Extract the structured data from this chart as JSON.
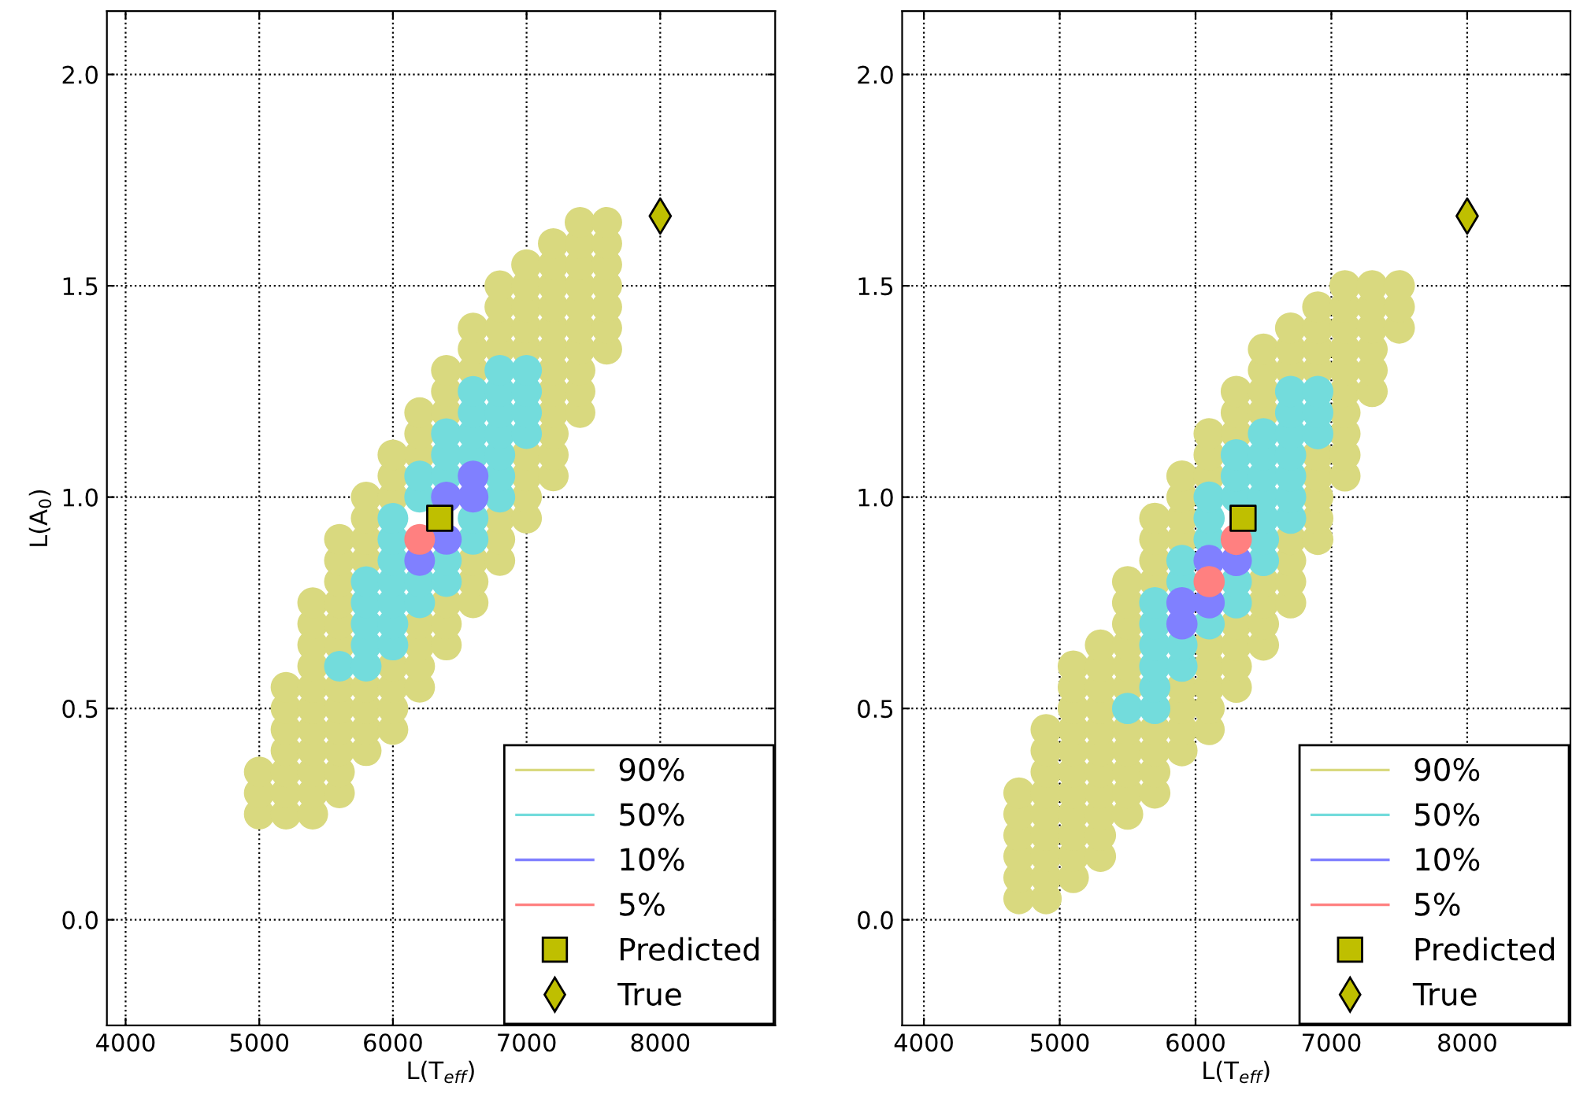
{
  "chart_data": [
    {
      "type": "scatter",
      "xlabel": "L(T$_{eff}$)",
      "ylabel": "L(A$_{0}$)",
      "xlim": [
        3860,
        8860
      ],
      "ylim": [
        -0.25,
        2.15
      ],
      "xticks": [
        4000,
        5000,
        6000,
        7000,
        8000
      ],
      "yticks": [
        {
          "value": 0,
          "label": "0.0"
        },
        {
          "value": 0.5,
          "label": "0.5"
        },
        {
          "value": 1,
          "label": "1.0"
        },
        {
          "value": 1.5,
          "label": "1.5"
        },
        {
          "value": 2,
          "label": "2.0"
        }
      ],
      "grid": true,
      "legend": "bottom right",
      "series": [
        {
          "name": "90%",
          "color": "#d9d97f",
          "marker": "circle",
          "x": [
            5000,
            5000,
            5000,
            5200,
            5200,
            5200,
            5200,
            5200,
            5200,
            5200,
            5400,
            5400,
            5400,
            5400,
            5400,
            5400,
            5400,
            5400,
            5400,
            5400,
            5400,
            5600,
            5600,
            5600,
            5600,
            5600,
            5600,
            5600,
            5600,
            5600,
            5600,
            5600,
            5600,
            5800,
            5800,
            5800,
            5800,
            5800,
            5800,
            5800,
            5800,
            6000,
            6000,
            6000,
            6000,
            6000,
            6000,
            6000,
            6200,
            6200,
            6200,
            6200,
            6200,
            6200,
            6200,
            6400,
            6400,
            6400,
            6400,
            6400,
            6400,
            6600,
            6600,
            6600,
            6600,
            6600,
            6600,
            6800,
            6800,
            6800,
            6800,
            6800,
            6800,
            6800,
            7000,
            7000,
            7000,
            7000,
            7000,
            7000,
            7000,
            7000,
            7000,
            7200,
            7200,
            7200,
            7200,
            7200,
            7200,
            7200,
            7200,
            7200,
            7200,
            7200,
            7200,
            7400,
            7400,
            7400,
            7400,
            7400,
            7400,
            7400,
            7400,
            7400,
            7400,
            7600,
            7600,
            7600,
            7600,
            7600,
            7600,
            7600
          ],
          "values": [
            0.25,
            0.3,
            0.35,
            0.25,
            0.3,
            0.35,
            0.4,
            0.45,
            0.5,
            0.55,
            0.25,
            0.3,
            0.35,
            0.4,
            0.45,
            0.5,
            0.55,
            0.6,
            0.65,
            0.7,
            0.75,
            0.3,
            0.35,
            0.4,
            0.45,
            0.5,
            0.55,
            0.65,
            0.7,
            0.75,
            0.8,
            0.85,
            0.9,
            0.4,
            0.45,
            0.5,
            0.55,
            0.85,
            0.9,
            0.95,
            1.0,
            0.45,
            0.5,
            0.55,
            0.6,
            1.0,
            1.05,
            1.1,
            0.55,
            0.6,
            0.65,
            0.7,
            1.1,
            1.15,
            1.2,
            0.65,
            0.7,
            0.75,
            1.2,
            1.25,
            1.3,
            0.75,
            0.8,
            0.85,
            1.3,
            1.35,
            1.4,
            0.85,
            0.9,
            0.95,
            1.35,
            1.4,
            1.45,
            1.5,
            0.95,
            1.0,
            1.05,
            1.1,
            1.35,
            1.4,
            1.45,
            1.5,
            1.55,
            1.05,
            1.1,
            1.15,
            1.2,
            1.25,
            1.3,
            1.35,
            1.4,
            1.45,
            1.5,
            1.55,
            1.6,
            1.2,
            1.25,
            1.3,
            1.35,
            1.4,
            1.45,
            1.5,
            1.55,
            1.6,
            1.65,
            1.35,
            1.4,
            1.45,
            1.5,
            1.55,
            1.6,
            1.65
          ]
        },
        {
          "name": "50%",
          "color": "#73dcdc",
          "marker": "circle",
          "x": [
            5600,
            5800,
            5800,
            5800,
            5800,
            5800,
            6000,
            6000,
            6000,
            6000,
            6000,
            6000,
            6000,
            6200,
            6200,
            6200,
            6200,
            6400,
            6400,
            6400,
            6400,
            6400,
            6600,
            6600,
            6600,
            6600,
            6600,
            6600,
            6800,
            6800,
            6800,
            6800,
            6800,
            6800,
            6800,
            7000,
            7000,
            7000,
            7000
          ],
          "values": [
            0.6,
            0.6,
            0.65,
            0.7,
            0.75,
            0.8,
            0.65,
            0.7,
            0.75,
            0.8,
            0.85,
            0.9,
            0.95,
            0.75,
            0.8,
            1.0,
            1.05,
            0.8,
            0.85,
            1.05,
            1.1,
            1.15,
            0.9,
            0.95,
            1.1,
            1.15,
            1.2,
            1.25,
            1.0,
            1.05,
            1.1,
            1.15,
            1.2,
            1.25,
            1.3,
            1.15,
            1.2,
            1.25,
            1.3
          ]
        },
        {
          "name": "10%",
          "color": "#8080ff",
          "marker": "circle",
          "x": [
            6200,
            6400,
            6400,
            6600,
            6600
          ],
          "values": [
            0.85,
            0.9,
            1.0,
            1.0,
            1.05
          ]
        },
        {
          "name": "5%",
          "color": "#ff8080",
          "marker": "circle",
          "x": [
            6200
          ],
          "values": [
            0.9
          ]
        },
        {
          "name": "Predicted",
          "marker": "square",
          "color": "#bfbf00",
          "x": [
            6350
          ],
          "values": [
            0.95
          ]
        },
        {
          "name": "True",
          "marker": "diamond",
          "color": "#bfbf00",
          "x": [
            8000
          ],
          "values": [
            1.665
          ]
        }
      ]
    },
    {
      "type": "scatter",
      "xlabel": "L(T$_{eff}$)",
      "xlim": [
        3840,
        8760
      ],
      "ylim": [
        -0.25,
        2.15
      ],
      "xticks": [
        4000,
        5000,
        6000,
        7000,
        8000
      ],
      "yticks": [
        {
          "value": 0,
          "label": "0.0"
        },
        {
          "value": 0.5,
          "label": "0.5"
        },
        {
          "value": 1,
          "label": "1.0"
        },
        {
          "value": 1.5,
          "label": "1.5"
        },
        {
          "value": 2,
          "label": "2.0"
        }
      ],
      "grid": true,
      "legend": "bottom right",
      "series": [
        {
          "name": "90%",
          "color": "#d9d97f",
          "marker": "circle",
          "x": [
            4700,
            4700,
            4700,
            4700,
            4700,
            4700,
            4900,
            4900,
            4900,
            4900,
            4900,
            4900,
            4900,
            4900,
            4900,
            5100,
            5100,
            5100,
            5100,
            5100,
            5100,
            5100,
            5100,
            5100,
            5100,
            5100,
            5300,
            5300,
            5300,
            5300,
            5300,
            5300,
            5300,
            5300,
            5300,
            5300,
            5300,
            5500,
            5500,
            5500,
            5500,
            5500,
            5500,
            5500,
            5500,
            5500,
            5500,
            5500,
            5700,
            5700,
            5700,
            5700,
            5700,
            5700,
            5700,
            5700,
            5900,
            5900,
            5900,
            5900,
            5900,
            5900,
            5900,
            5900,
            6100,
            6100,
            6100,
            6100,
            6100,
            6100,
            6100,
            6100,
            6300,
            6300,
            6300,
            6300,
            6300,
            6300,
            6300,
            6500,
            6500,
            6500,
            6500,
            6500,
            6500,
            6500,
            6500,
            6700,
            6700,
            6700,
            6700,
            6700,
            6700,
            6700,
            6900,
            6900,
            6900,
            6900,
            6900,
            6900,
            6900,
            6900,
            6900,
            7100,
            7100,
            7100,
            7100,
            7100,
            7100,
            7100,
            7100,
            7100,
            7100,
            7300,
            7300,
            7300,
            7300,
            7300,
            7300,
            7500,
            7500,
            7500
          ],
          "values": [
            0.05,
            0.1,
            0.15,
            0.2,
            0.25,
            0.3,
            0.05,
            0.1,
            0.15,
            0.2,
            0.25,
            0.3,
            0.35,
            0.4,
            0.45,
            0.1,
            0.15,
            0.2,
            0.25,
            0.3,
            0.35,
            0.4,
            0.45,
            0.5,
            0.55,
            0.6,
            0.15,
            0.2,
            0.25,
            0.3,
            0.35,
            0.4,
            0.45,
            0.5,
            0.55,
            0.6,
            0.65,
            0.25,
            0.3,
            0.35,
            0.4,
            0.45,
            0.55,
            0.6,
            0.65,
            0.7,
            0.75,
            0.8,
            0.3,
            0.35,
            0.4,
            0.45,
            0.8,
            0.85,
            0.9,
            0.95,
            0.4,
            0.45,
            0.5,
            0.55,
            0.9,
            0.95,
            1.0,
            1.05,
            0.45,
            0.5,
            0.55,
            0.6,
            0.65,
            1.05,
            1.1,
            1.15,
            0.55,
            0.6,
            0.65,
            0.7,
            1.15,
            1.2,
            1.25,
            0.65,
            0.7,
            0.75,
            0.8,
            1.2,
            1.25,
            1.3,
            1.35,
            0.75,
            0.8,
            0.85,
            0.9,
            1.3,
            1.35,
            1.4,
            0.9,
            0.95,
            1.0,
            1.05,
            1.1,
            1.3,
            1.35,
            1.4,
            1.45,
            1.05,
            1.1,
            1.15,
            1.2,
            1.25,
            1.3,
            1.35,
            1.4,
            1.45,
            1.5,
            1.25,
            1.3,
            1.35,
            1.4,
            1.45,
            1.5,
            1.4,
            1.45,
            1.5
          ]
        },
        {
          "name": "50%",
          "color": "#73dcdc",
          "marker": "circle",
          "x": [
            5500,
            5700,
            5700,
            5700,
            5700,
            5700,
            5700,
            5900,
            5900,
            5900,
            5900,
            6100,
            6100,
            6100,
            6100,
            6300,
            6300,
            6300,
            6300,
            6300,
            6500,
            6500,
            6500,
            6500,
            6500,
            6500,
            6500,
            6700,
            6700,
            6700,
            6700,
            6700,
            6700,
            6700,
            6900,
            6900,
            6900
          ],
          "values": [
            0.5,
            0.5,
            0.55,
            0.6,
            0.65,
            0.7,
            0.75,
            0.6,
            0.65,
            0.8,
            0.85,
            0.7,
            0.9,
            0.95,
            1.0,
            0.75,
            0.8,
            1.0,
            1.05,
            1.1,
            0.85,
            0.9,
            0.95,
            1.0,
            1.05,
            1.1,
            1.15,
            0.95,
            1.0,
            1.05,
            1.1,
            1.15,
            1.2,
            1.25,
            1.15,
            1.2,
            1.25
          ]
        },
        {
          "name": "10%",
          "color": "#8080ff",
          "marker": "circle",
          "x": [
            5900,
            5900,
            6100,
            6100,
            6300
          ],
          "values": [
            0.7,
            0.75,
            0.75,
            0.85,
            0.85
          ]
        },
        {
          "name": "5%",
          "color": "#ff8080",
          "marker": "circle",
          "x": [
            6100,
            6300
          ],
          "values": [
            0.8,
            0.9
          ]
        },
        {
          "name": "Predicted",
          "marker": "square",
          "color": "#bfbf00",
          "x": [
            6350
          ],
          "values": [
            0.95
          ]
        },
        {
          "name": "True",
          "marker": "diamond",
          "color": "#bfbf00",
          "x": [
            8000
          ],
          "values": [
            1.665
          ]
        }
      ]
    }
  ]
}
